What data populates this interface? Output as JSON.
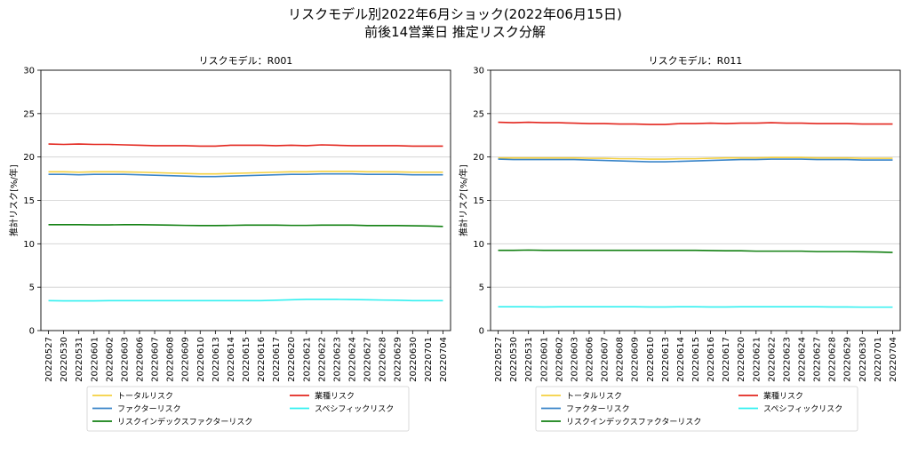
{
  "figure": {
    "title_line1": "リスクモデル別2022年6月ショック(2022年06月15日)",
    "title_line2": "前後14営業日 推定リスク分解"
  },
  "chart_data": [
    {
      "type": "line",
      "title": "リスクモデル：R001",
      "xlabel": "",
      "ylabel": "推計リスク[%/年]",
      "ylim": [
        0,
        30
      ],
      "yticks": [
        0,
        5,
        10,
        15,
        20,
        25,
        30
      ],
      "grid": "y",
      "legend": "below",
      "categories": [
        "20220527",
        "20220530",
        "20220531",
        "20220601",
        "20220602",
        "20220603",
        "20220606",
        "20220607",
        "20220608",
        "20220609",
        "20220610",
        "20220613",
        "20220614",
        "20220615",
        "20220616",
        "20220617",
        "20220620",
        "20220621",
        "20220622",
        "20220623",
        "20220624",
        "20220627",
        "20220628",
        "20220629",
        "20220630",
        "20220701",
        "20220704"
      ],
      "series": [
        {
          "name": "トータルリスク",
          "color": "#f4d03f",
          "values": [
            18.3,
            18.3,
            18.25,
            18.3,
            18.3,
            18.28,
            18.25,
            18.2,
            18.15,
            18.1,
            18.05,
            18.05,
            18.1,
            18.15,
            18.2,
            18.25,
            18.3,
            18.3,
            18.35,
            18.35,
            18.35,
            18.3,
            18.3,
            18.28,
            18.25,
            18.25,
            18.25
          ]
        },
        {
          "name": "業種リスク",
          "color": "#e3261e",
          "values": [
            21.5,
            21.45,
            21.5,
            21.45,
            21.45,
            21.4,
            21.35,
            21.3,
            21.3,
            21.3,
            21.25,
            21.25,
            21.35,
            21.35,
            21.35,
            21.3,
            21.35,
            21.3,
            21.4,
            21.35,
            21.3,
            21.3,
            21.3,
            21.3,
            21.25,
            21.25,
            21.25
          ]
        },
        {
          "name": "ファクターリスク",
          "color": "#3a85c9",
          "values": [
            18.0,
            18.0,
            17.95,
            18.0,
            18.0,
            18.0,
            17.95,
            17.9,
            17.85,
            17.8,
            17.75,
            17.75,
            17.8,
            17.85,
            17.9,
            17.95,
            18.0,
            18.0,
            18.05,
            18.05,
            18.05,
            18.0,
            18.0,
            18.0,
            17.95,
            17.95,
            17.95
          ]
        },
        {
          "name": "スペシフィックリスク",
          "color": "#33f0f0",
          "values": [
            3.45,
            3.42,
            3.42,
            3.42,
            3.45,
            3.45,
            3.45,
            3.45,
            3.45,
            3.45,
            3.45,
            3.45,
            3.45,
            3.45,
            3.45,
            3.5,
            3.55,
            3.6,
            3.6,
            3.6,
            3.58,
            3.55,
            3.52,
            3.5,
            3.45,
            3.45,
            3.45
          ]
        },
        {
          "name": "リスクインデックスファクターリスク",
          "color": "#128012",
          "values": [
            12.2,
            12.2,
            12.2,
            12.18,
            12.18,
            12.2,
            12.2,
            12.18,
            12.15,
            12.12,
            12.1,
            12.1,
            12.12,
            12.15,
            12.15,
            12.15,
            12.12,
            12.12,
            12.15,
            12.15,
            12.15,
            12.1,
            12.1,
            12.1,
            12.08,
            12.05,
            12.0
          ]
        }
      ]
    },
    {
      "type": "line",
      "title": "リスクモデル：R011",
      "xlabel": "",
      "ylabel": "推計リスク[%/年]",
      "ylim": [
        0,
        30
      ],
      "yticks": [
        0,
        5,
        10,
        15,
        20,
        25,
        30
      ],
      "grid": "y",
      "legend": "below",
      "categories": [
        "20220527",
        "20220530",
        "20220531",
        "20220601",
        "20220602",
        "20220603",
        "20220606",
        "20220607",
        "20220608",
        "20220609",
        "20220610",
        "20220613",
        "20220614",
        "20220615",
        "20220616",
        "20220617",
        "20220620",
        "20220621",
        "20220622",
        "20220623",
        "20220624",
        "20220627",
        "20220628",
        "20220629",
        "20220630",
        "20220701",
        "20220704"
      ],
      "series": [
        {
          "name": "トータルリスク",
          "color": "#f4d03f",
          "values": [
            19.9,
            19.9,
            19.9,
            19.9,
            19.9,
            19.9,
            19.85,
            19.85,
            19.8,
            19.8,
            19.75,
            19.75,
            19.8,
            19.8,
            19.85,
            19.9,
            19.9,
            19.9,
            19.95,
            19.95,
            19.95,
            19.9,
            19.9,
            19.9,
            19.85,
            19.85,
            19.85
          ]
        },
        {
          "name": "業種リスク",
          "color": "#e3261e",
          "values": [
            24.0,
            23.95,
            24.0,
            23.95,
            23.95,
            23.9,
            23.85,
            23.85,
            23.8,
            23.8,
            23.75,
            23.75,
            23.85,
            23.85,
            23.9,
            23.85,
            23.9,
            23.9,
            23.95,
            23.9,
            23.9,
            23.85,
            23.85,
            23.85,
            23.8,
            23.8,
            23.8
          ]
        },
        {
          "name": "ファクターリスク",
          "color": "#3a85c9",
          "values": [
            19.75,
            19.7,
            19.7,
            19.7,
            19.7,
            19.7,
            19.65,
            19.6,
            19.55,
            19.5,
            19.45,
            19.45,
            19.5,
            19.55,
            19.6,
            19.65,
            19.7,
            19.7,
            19.75,
            19.75,
            19.75,
            19.7,
            19.7,
            19.7,
            19.65,
            19.65,
            19.65
          ]
        },
        {
          "name": "スペシフィックリスク",
          "color": "#33f0f0",
          "values": [
            2.75,
            2.75,
            2.75,
            2.72,
            2.75,
            2.75,
            2.75,
            2.75,
            2.75,
            2.75,
            2.72,
            2.72,
            2.75,
            2.75,
            2.72,
            2.72,
            2.75,
            2.75,
            2.75,
            2.75,
            2.75,
            2.75,
            2.72,
            2.72,
            2.7,
            2.7,
            2.7
          ]
        },
        {
          "name": "リスクインデックスファクターリスク",
          "color": "#128012",
          "values": [
            9.25,
            9.25,
            9.28,
            9.25,
            9.25,
            9.25,
            9.25,
            9.25,
            9.25,
            9.25,
            9.25,
            9.25,
            9.25,
            9.25,
            9.22,
            9.2,
            9.2,
            9.15,
            9.15,
            9.15,
            9.15,
            9.1,
            9.1,
            9.1,
            9.08,
            9.05,
            9.0
          ]
        }
      ]
    }
  ]
}
